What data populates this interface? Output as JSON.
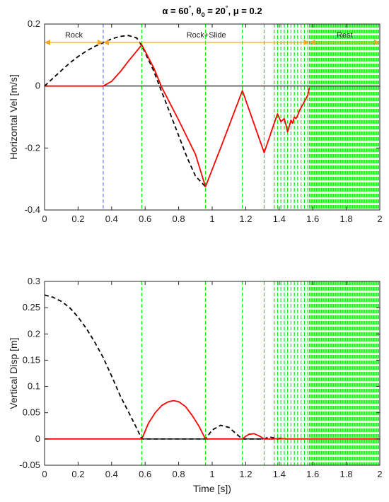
{
  "figure": {
    "title_parts": [
      "α = 60",
      "°",
      ", θ",
      "0",
      " = 20",
      "°",
      ", μ = 0.2"
    ]
  },
  "chart_data": [
    {
      "type": "line",
      "panel": "top",
      "xlabel": "",
      "ylabel": "Horizontal Vel [m/s]",
      "xlim": [
        0,
        2
      ],
      "ylim": [
        -0.4,
        0.2
      ],
      "xticks": [
        "0",
        "0.2",
        "0.4",
        "0.6",
        "0.8",
        "1",
        "1.2",
        "1.4",
        "1.6",
        "1.8",
        "2"
      ],
      "yticks": [
        "0.2",
        "0",
        "-0.2",
        "-0.4"
      ],
      "ytick_values": [
        0.2,
        0,
        -0.2,
        -0.4
      ],
      "grid": false,
      "regions": [
        {
          "label": "Rock",
          "from": 0,
          "to": 0.35
        },
        {
          "label": "Rock+Slide",
          "from": 0.35,
          "to": 1.58
        },
        {
          "label": "Rest",
          "from": 1.58,
          "to": 2
        }
      ],
      "region_color": "#f5a623",
      "blue_marker_x": 0.35,
      "series": [
        {
          "style": "dashed-black",
          "x": [
            0,
            0.05,
            0.1,
            0.15,
            0.2,
            0.25,
            0.3,
            0.35,
            0.4,
            0.45,
            0.5,
            0.55,
            0.58,
            0.65,
            0.7,
            0.75,
            0.8,
            0.85,
            0.9,
            0.96
          ],
          "values": [
            0,
            0.025,
            0.05,
            0.074,
            0.095,
            0.113,
            0.128,
            0.14,
            0.152,
            0.16,
            0.163,
            0.155,
            0.13,
            0.05,
            -0.02,
            -0.09,
            -0.16,
            -0.23,
            -0.29,
            -0.325
          ]
        },
        {
          "style": "solid-red",
          "x": [
            0,
            0.35,
            0.4,
            0.45,
            0.5,
            0.55,
            0.58,
            0.65,
            0.7,
            0.8,
            0.9,
            0.96,
            1.05,
            1.18,
            1.31,
            1.37,
            1.39,
            1.41,
            1.43,
            1.44,
            1.45,
            1.46,
            1.47,
            1.48,
            1.49,
            1.5,
            1.51,
            1.52,
            1.53,
            1.55,
            1.57,
            1.58
          ],
          "values": [
            0,
            0,
            0.015,
            0.045,
            0.08,
            0.113,
            0.133,
            0.06,
            -0.005,
            -0.11,
            -0.22,
            -0.325,
            -0.2,
            -0.015,
            -0.215,
            -0.12,
            -0.09,
            -0.115,
            -0.105,
            -0.125,
            -0.148,
            -0.13,
            -0.11,
            -0.12,
            -0.1,
            -0.105,
            -0.095,
            -0.08,
            -0.07,
            -0.05,
            -0.03,
            -0.005
          ]
        }
      ],
      "zero_line": true
    },
    {
      "type": "line",
      "panel": "bottom",
      "xlabel": "Time [s])",
      "ylabel": "Vertical Disp [m]",
      "xlim": [
        0,
        2
      ],
      "ylim": [
        -0.05,
        0.3
      ],
      "xticks": [
        "0",
        "0.2",
        "0.4",
        "0.6",
        "0.8",
        "1",
        "1.2",
        "1.4",
        "1.6",
        "1.8",
        "2"
      ],
      "yticks": [
        "0.3",
        "0.25",
        "0.2",
        "0.15",
        "0.1",
        "0.05",
        "0",
        "-0.05"
      ],
      "ytick_values": [
        0.3,
        0.25,
        0.2,
        0.15,
        0.1,
        0.05,
        0,
        -0.05
      ],
      "grid": false,
      "series": [
        {
          "style": "dashed-black",
          "x": [
            0,
            0.05,
            0.1,
            0.15,
            0.2,
            0.25,
            0.3,
            0.35,
            0.4,
            0.45,
            0.5,
            0.55,
            0.58,
            0.96,
            1.0,
            1.05,
            1.1,
            1.15,
            1.18,
            1.31,
            1.34,
            1.37,
            1.39,
            1.41,
            1.43,
            1.44
          ],
          "values": [
            0.274,
            0.27,
            0.262,
            0.25,
            0.232,
            0.21,
            0.184,
            0.155,
            0.12,
            0.083,
            0.052,
            0.02,
            0,
            0,
            0.017,
            0.026,
            0.022,
            0.008,
            0,
            0,
            0.004,
            0.002,
            0,
            0.0015,
            0.0008,
            0
          ]
        },
        {
          "style": "solid-red",
          "x": [
            0,
            0.58,
            0.62,
            0.66,
            0.7,
            0.74,
            0.77,
            0.8,
            0.84,
            0.88,
            0.92,
            0.96,
            1.18,
            1.2,
            1.22,
            1.25,
            1.28,
            1.31,
            1.37,
            1.4,
            1.41,
            1.43,
            1.44,
            2.0
          ],
          "values": [
            0,
            0,
            0.03,
            0.05,
            0.064,
            0.071,
            0.073,
            0.071,
            0.062,
            0.045,
            0.025,
            0,
            0,
            0.005,
            0.009,
            0.01,
            0.006,
            0,
            0,
            0.0012,
            0.0006,
            0.0004,
            0,
            0
          ]
        }
      ],
      "zero_line": true
    }
  ],
  "event_times": [
    0.58,
    0.96,
    1.18,
    1.31,
    1.37,
    1.39,
    1.41,
    1.43,
    1.45,
    1.47,
    1.49,
    1.51,
    1.53,
    1.55,
    1.57
  ],
  "rest_band": {
    "from": 1.58,
    "to": 2.0,
    "step": 0.006
  },
  "colors": {
    "axes": "#262626",
    "red": "#ff0000",
    "black": "#000000",
    "green": "#00ee00",
    "blue": "#5b5bff",
    "orange": "#f5a623"
  }
}
